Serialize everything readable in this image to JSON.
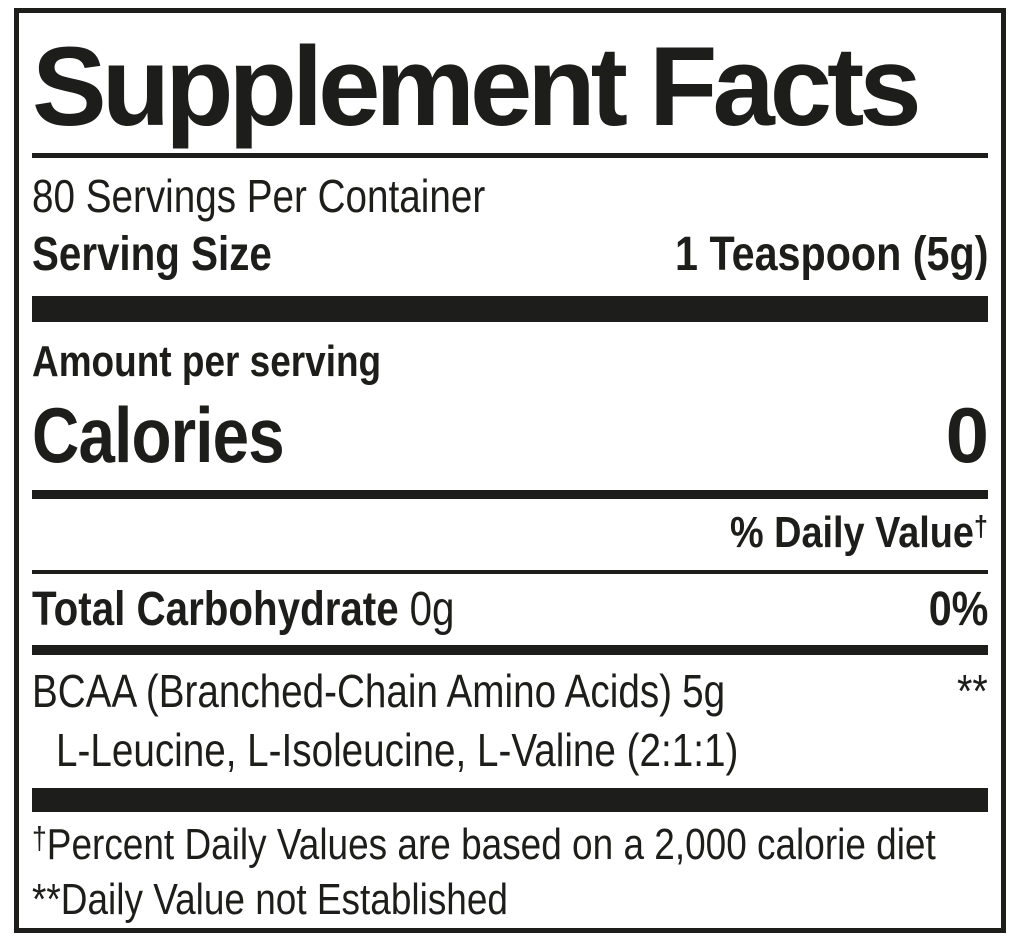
{
  "colors": {
    "ink": "#1d1d1b",
    "background": "#ffffff"
  },
  "header": {
    "title": "Supplement Facts"
  },
  "serving_info": {
    "servings_per_container": "80 Servings Per Container",
    "serving_size_label": "Serving Size",
    "serving_size_value": "1 Teaspoon (5g)"
  },
  "calories": {
    "amount_per_serving_label": "Amount per serving",
    "label": "Calories",
    "value": "0"
  },
  "daily_value": {
    "header_text": "% Daily Value",
    "dagger": "†"
  },
  "nutrients": {
    "carbohydrate": {
      "name": "Total Carbohydrate",
      "amount": "0g",
      "daily_value": "0%"
    },
    "bcaa": {
      "name": "BCAA (Branched-Chain Amino Acids)",
      "amount": "5g",
      "daily_value_marker": "**",
      "components": "L-Leucine, L-Isoleucine, L-Valine (2:1:1)"
    }
  },
  "footnotes": {
    "dagger_marker": "†",
    "dagger_text": "Percent Daily Values are based on a 2,000 calorie diet",
    "asterisk_marker": "**",
    "asterisk_text": "Daily Value not Established"
  }
}
